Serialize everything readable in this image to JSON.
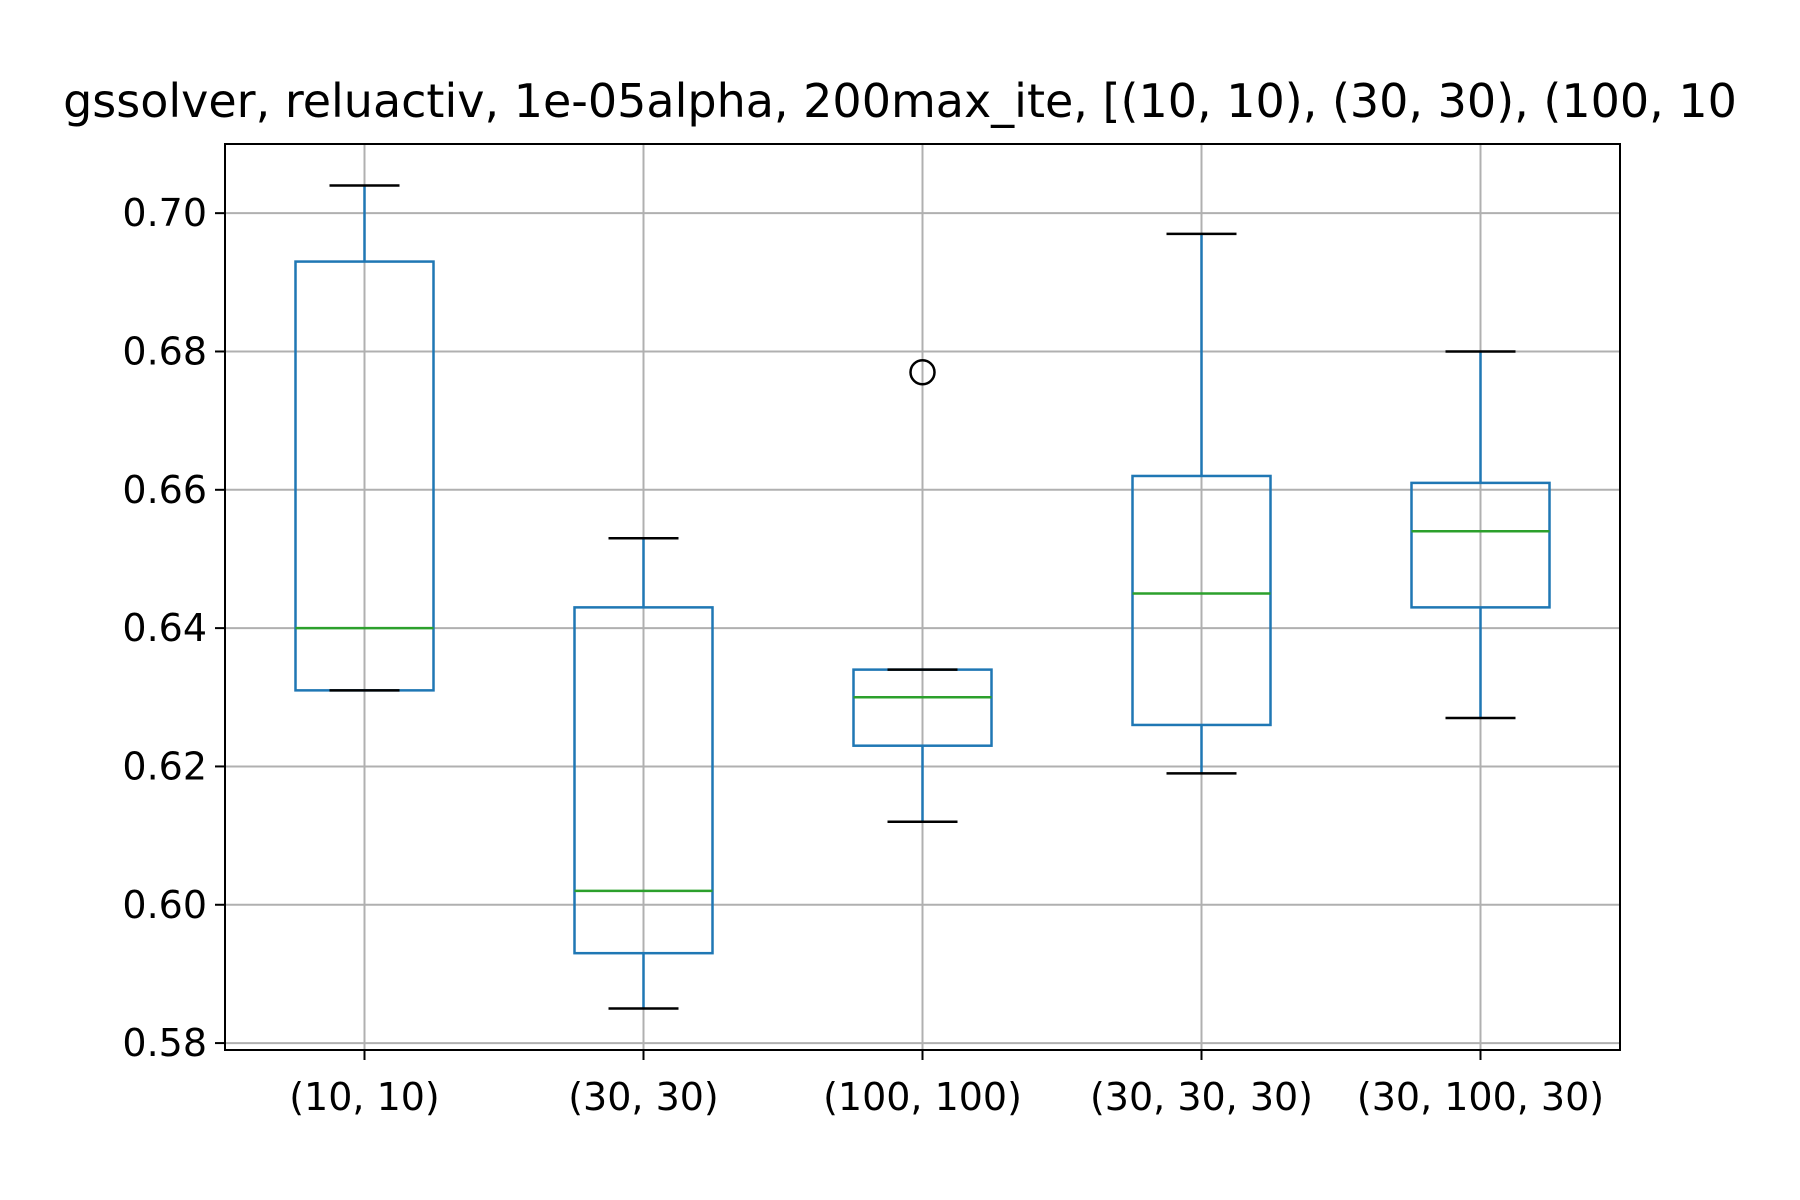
{
  "chart_data": {
    "type": "box",
    "title": "gssolver, reluactiv, 1e-05alpha, 200max_ite, [(10, 10), (30, 30), (100, 10",
    "xlabel": "",
    "ylabel": "",
    "ylim": [
      0.579,
      0.71
    ],
    "yticks": [
      0.58,
      0.6,
      0.62,
      0.64,
      0.66,
      0.68,
      0.7
    ],
    "ytick_labels": [
      "0.58",
      "0.60",
      "0.62",
      "0.64",
      "0.66",
      "0.68",
      "0.70"
    ],
    "grid": true,
    "categories": [
      "(10, 10)",
      "(30, 30)",
      "(100, 100)",
      "(30, 30, 30)",
      "(30, 100, 30)"
    ],
    "boxes": [
      {
        "whisker_low": 0.631,
        "q1": 0.631,
        "median": 0.64,
        "q3": 0.693,
        "whisker_high": 0.704,
        "outliers": []
      },
      {
        "whisker_low": 0.585,
        "q1": 0.593,
        "median": 0.602,
        "q3": 0.643,
        "whisker_high": 0.653,
        "outliers": []
      },
      {
        "whisker_low": 0.612,
        "q1": 0.623,
        "median": 0.63,
        "q3": 0.634,
        "whisker_high": 0.634,
        "outliers": [
          0.677
        ]
      },
      {
        "whisker_low": 0.619,
        "q1": 0.626,
        "median": 0.645,
        "q3": 0.662,
        "whisker_high": 0.697,
        "outliers": []
      },
      {
        "whisker_low": 0.627,
        "q1": 0.643,
        "median": 0.654,
        "q3": 0.661,
        "whisker_high": 0.68,
        "outliers": []
      }
    ],
    "colors": {
      "box": "#1f77b4",
      "median": "#2ca02c",
      "caps": "#000000",
      "grid": "#b0b0b0",
      "axes": "#000000"
    }
  }
}
